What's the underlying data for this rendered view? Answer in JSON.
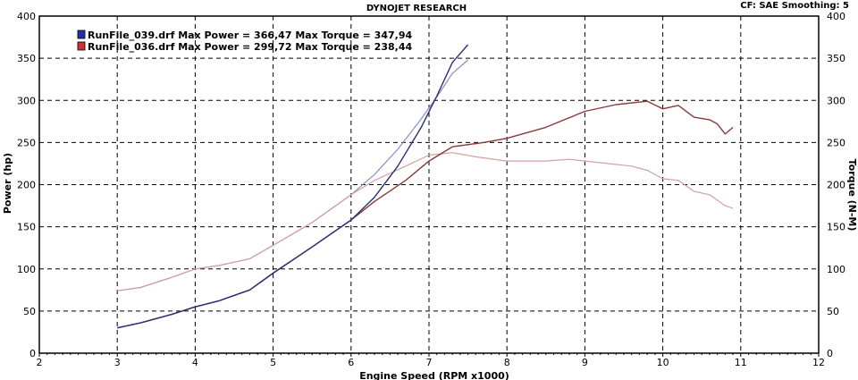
{
  "header": {
    "title": "DYNOJET RESEARCH",
    "settings": "CF: SAE  Smoothing: 5"
  },
  "legend": [
    {
      "text": "RunFile_039.drf Max Power = 366,47     Max Torque = 347,94",
      "swatch": "#2233aa"
    },
    {
      "text": "RunFile_036.drf Max Power = 299,72     Max Torque = 238,44",
      "swatch": "#cc3333"
    }
  ],
  "colors": {
    "run039_power": "#2a2f7a",
    "run039_torque": "#8c8cc8",
    "run036_power": "#8a3a3a",
    "run036_torque": "#d4a0a0"
  },
  "chart_data": {
    "type": "line",
    "title": "DYNOJET RESEARCH",
    "xlabel": "Engine Speed (RPM x1000)",
    "ylabel": "Power (hp)",
    "ylabel_right": "Torque (N-M)",
    "xlim": [
      2,
      12
    ],
    "ylim": [
      0,
      400
    ],
    "ylim_right": [
      0,
      400
    ],
    "x_ticks": [
      2,
      3,
      4,
      5,
      6,
      7,
      8,
      9,
      10,
      11,
      12
    ],
    "y_ticks": [
      0,
      50,
      100,
      150,
      200,
      250,
      300,
      350,
      400
    ],
    "grid": true,
    "legend_position": "top-left",
    "series": [
      {
        "key": "run039_power",
        "axis": "left",
        "points": [
          [
            3.0,
            30
          ],
          [
            3.3,
            36
          ],
          [
            3.7,
            46
          ],
          [
            4.0,
            55
          ],
          [
            4.3,
            62
          ],
          [
            4.7,
            75
          ],
          [
            5.0,
            95
          ],
          [
            5.5,
            126
          ],
          [
            6.0,
            158
          ],
          [
            6.3,
            185
          ],
          [
            6.6,
            222
          ],
          [
            6.9,
            268
          ],
          [
            7.1,
            305
          ],
          [
            7.3,
            345
          ],
          [
            7.5,
            366
          ]
        ]
      },
      {
        "key": "run039_torque",
        "axis": "right",
        "points": [
          [
            3.0,
            74
          ],
          [
            3.3,
            78
          ],
          [
            3.7,
            90
          ],
          [
            4.0,
            100
          ],
          [
            4.3,
            104
          ],
          [
            4.7,
            112
          ],
          [
            5.0,
            128
          ],
          [
            5.5,
            155
          ],
          [
            6.0,
            188
          ],
          [
            6.3,
            212
          ],
          [
            6.6,
            242
          ],
          [
            6.9,
            278
          ],
          [
            7.1,
            304
          ],
          [
            7.3,
            332
          ],
          [
            7.5,
            348
          ]
        ]
      },
      {
        "key": "run036_power",
        "axis": "left",
        "points": [
          [
            3.0,
            30
          ],
          [
            3.3,
            36
          ],
          [
            3.7,
            46
          ],
          [
            4.0,
            55
          ],
          [
            4.3,
            62
          ],
          [
            4.7,
            75
          ],
          [
            5.0,
            95
          ],
          [
            5.5,
            126
          ],
          [
            6.0,
            158
          ],
          [
            6.3,
            180
          ],
          [
            6.7,
            205
          ],
          [
            7.0,
            228
          ],
          [
            7.3,
            245
          ],
          [
            7.7,
            250
          ],
          [
            8.0,
            255
          ],
          [
            8.5,
            268
          ],
          [
            9.0,
            287
          ],
          [
            9.4,
            295
          ],
          [
            9.8,
            299
          ],
          [
            10.0,
            290
          ],
          [
            10.2,
            294
          ],
          [
            10.4,
            280
          ],
          [
            10.6,
            277
          ],
          [
            10.7,
            272
          ],
          [
            10.8,
            260
          ],
          [
            10.9,
            268
          ]
        ]
      },
      {
        "key": "run036_torque",
        "axis": "right",
        "points": [
          [
            3.0,
            74
          ],
          [
            3.3,
            78
          ],
          [
            3.7,
            90
          ],
          [
            4.0,
            100
          ],
          [
            4.3,
            104
          ],
          [
            4.7,
            112
          ],
          [
            5.0,
            128
          ],
          [
            5.5,
            155
          ],
          [
            6.0,
            188
          ],
          [
            6.3,
            205
          ],
          [
            6.7,
            222
          ],
          [
            7.0,
            235
          ],
          [
            7.3,
            238
          ],
          [
            7.6,
            233
          ],
          [
            8.0,
            228
          ],
          [
            8.5,
            228
          ],
          [
            8.8,
            230
          ],
          [
            9.2,
            226
          ],
          [
            9.6,
            222
          ],
          [
            9.8,
            217
          ],
          [
            10.0,
            207
          ],
          [
            10.2,
            205
          ],
          [
            10.4,
            192
          ],
          [
            10.6,
            188
          ],
          [
            10.8,
            175
          ],
          [
            10.9,
            172
          ]
        ]
      }
    ]
  }
}
